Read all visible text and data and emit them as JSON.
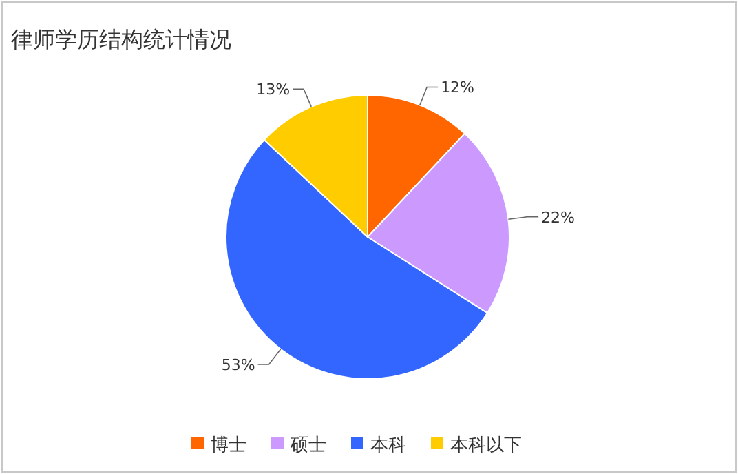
{
  "chart_data": {
    "type": "pie",
    "title": "律师学历结构统计情况",
    "categories": [
      "博士",
      "硕士",
      "本科",
      "本科以下"
    ],
    "values": [
      12,
      22,
      53,
      13
    ],
    "value_labels": [
      "12%",
      "22%",
      "53%",
      "13%"
    ],
    "colors": [
      "#ff6600",
      "#cc99ff",
      "#3366ff",
      "#ffcc00"
    ],
    "legend": "bottom"
  }
}
